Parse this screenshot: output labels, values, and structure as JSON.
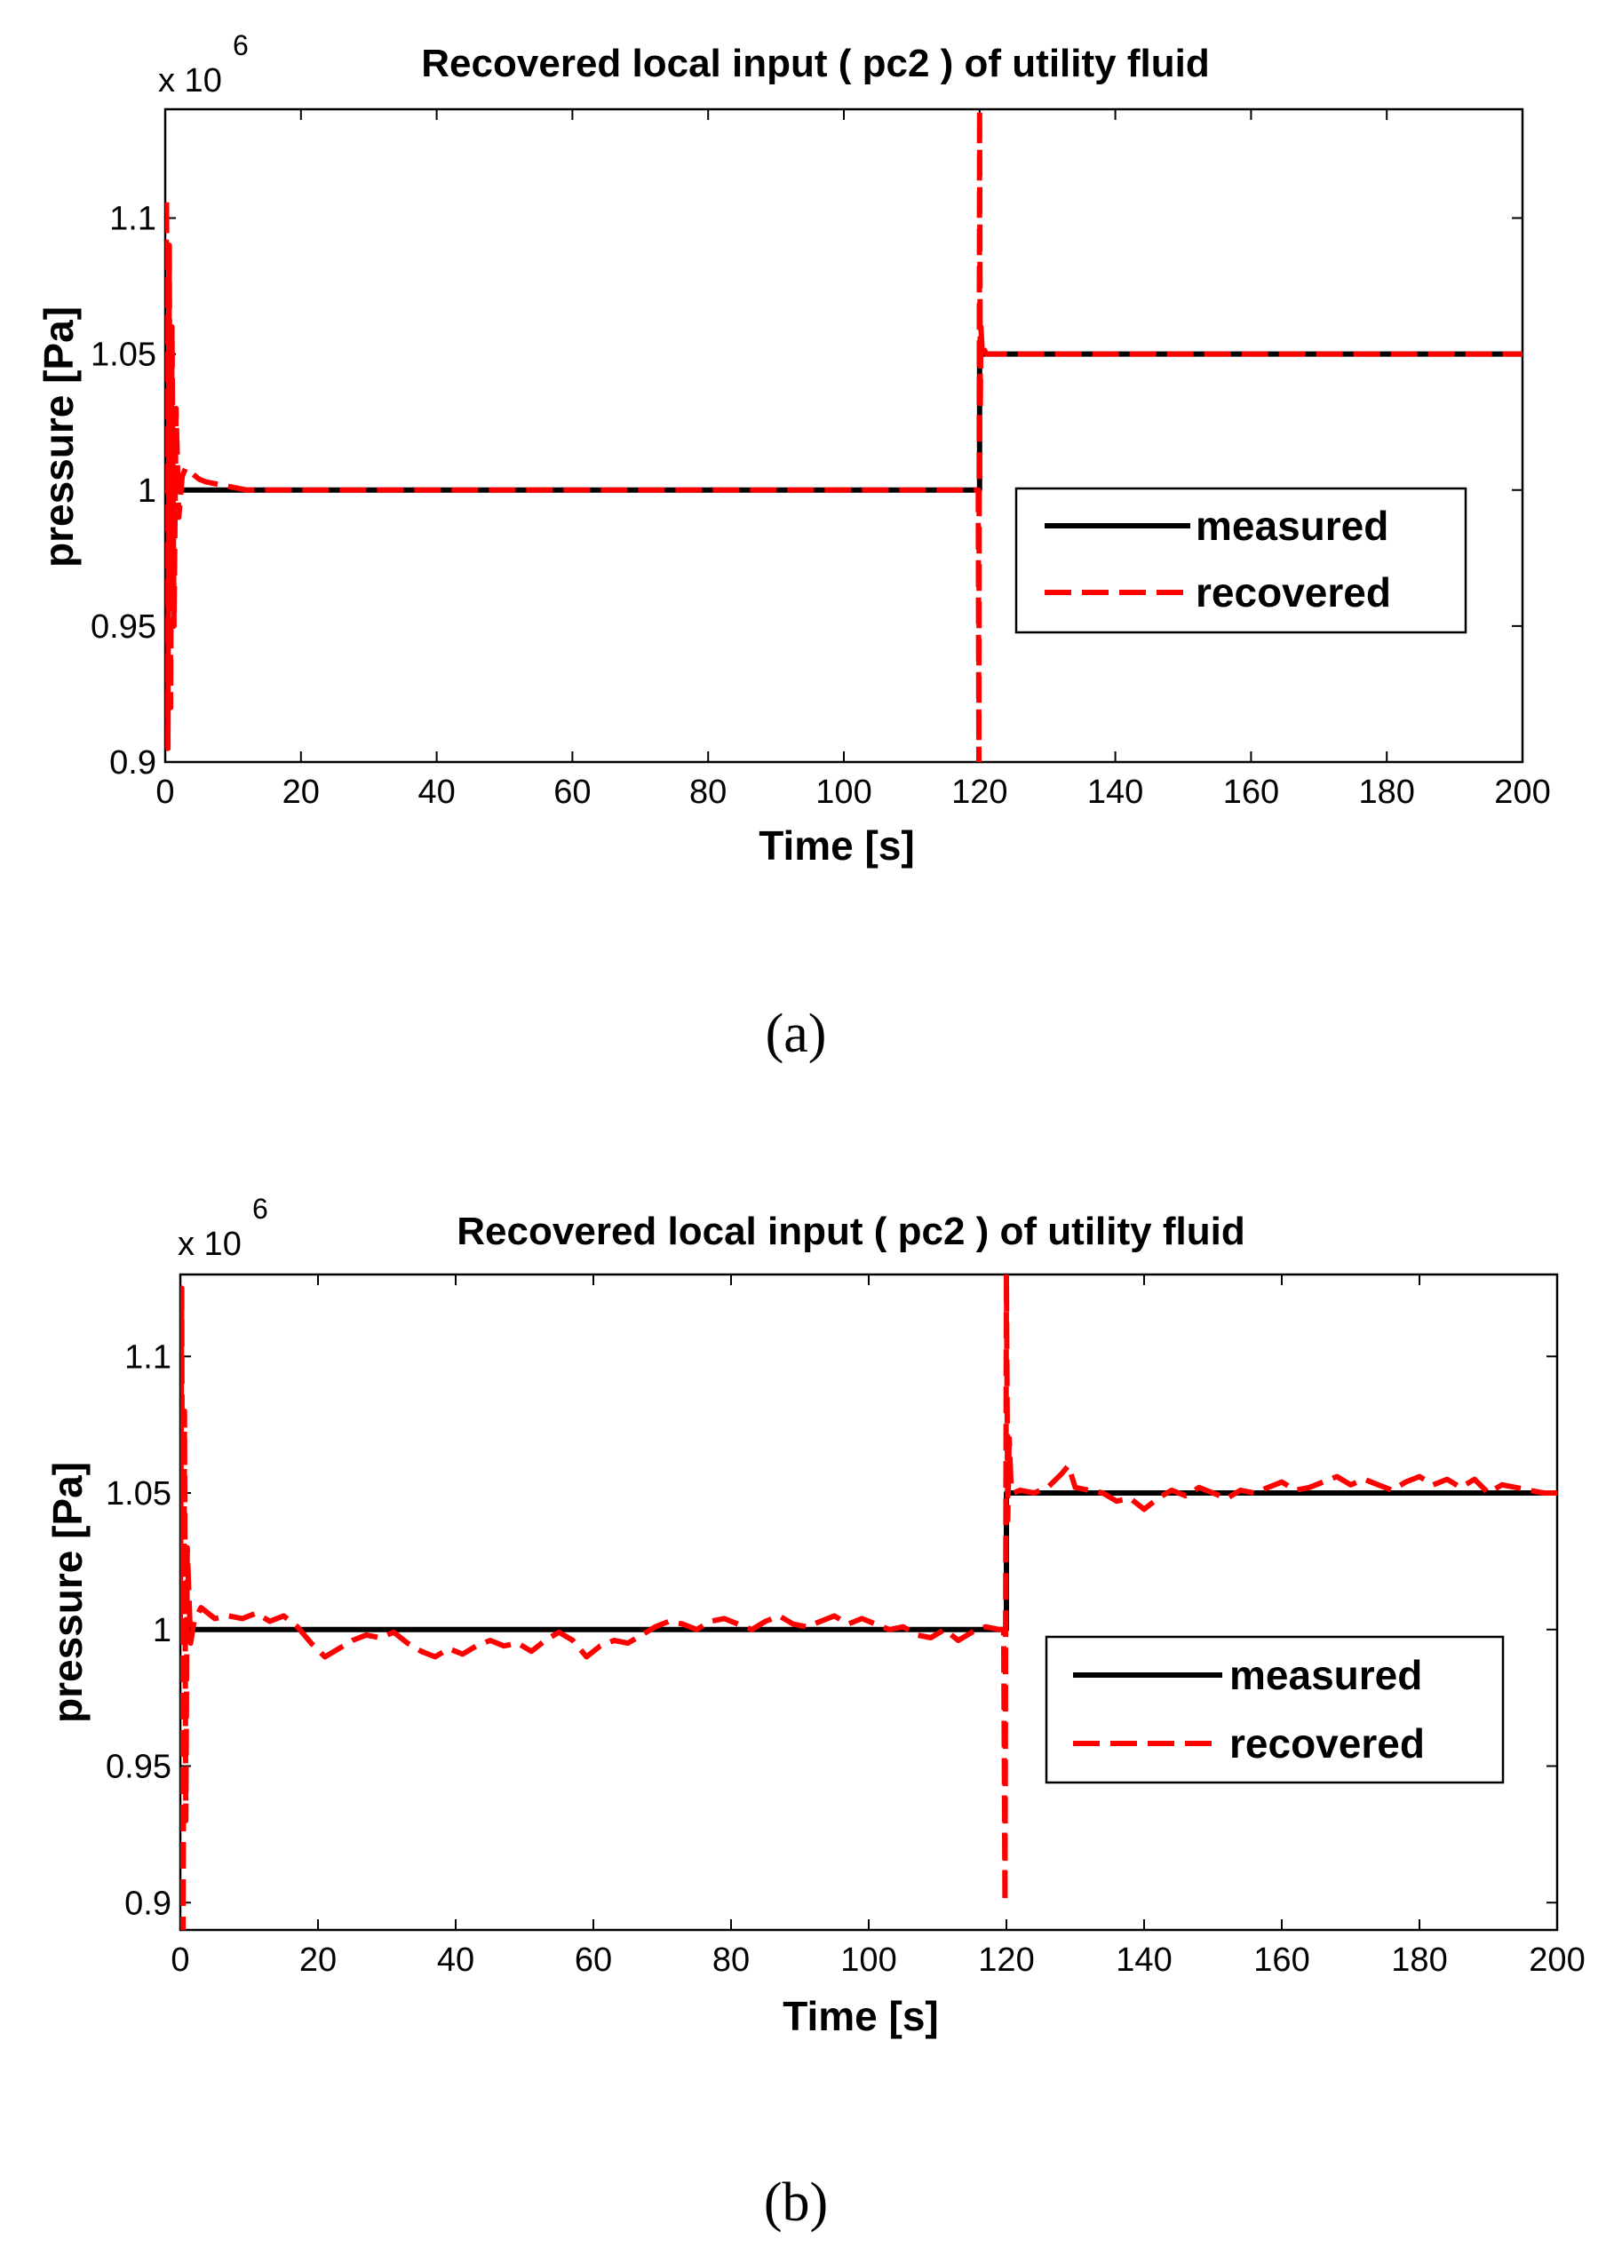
{
  "chart_data": [
    {
      "type": "line",
      "panel_label": "(a)",
      "title": "Recovered local input ( pc2 ) of utility fluid",
      "xlabel": "Time [s]",
      "ylabel": "pressure [Pa]",
      "y_multiplier_base": "x 10",
      "y_multiplier_exp": "6",
      "xlim": [
        0,
        200
      ],
      "ylim": [
        0.9,
        1.14
      ],
      "xticks": [
        0,
        20,
        40,
        60,
        80,
        100,
        120,
        140,
        160,
        180,
        200
      ],
      "xtick_labels": [
        "0",
        "20",
        "40",
        "60",
        "80",
        "100",
        "120",
        "140",
        "160",
        "180",
        "200"
      ],
      "yticks": [
        0.9,
        0.95,
        1.0,
        1.05,
        1.1
      ],
      "ytick_labels": [
        "0.9",
        "0.95",
        "1",
        "1.05",
        "1.1"
      ],
      "grid": false,
      "legend_position": "center-right",
      "series": [
        {
          "name": "measured",
          "color": "#000000",
          "style": "solid",
          "x": [
            0,
            120,
            120,
            200
          ],
          "y": [
            1.0,
            1.0,
            1.05,
            1.05
          ]
        },
        {
          "name": "recovered",
          "color": "#ff0000",
          "style": "dashed",
          "x": [
            0,
            0.2,
            0.4,
            0.6,
            0.8,
            1.0,
            1.3,
            1.6,
            2.0,
            2.5,
            3,
            4,
            5,
            6,
            8,
            10,
            12,
            15,
            20,
            40,
            60,
            80,
            100,
            119.8,
            119.9,
            120.0,
            120.1,
            120.2,
            120.4,
            120.6,
            121,
            130,
            160,
            200
          ],
          "y": [
            1.0,
            1.107,
            0.905,
            1.09,
            0.92,
            1.06,
            0.95,
            1.03,
            0.99,
            1.005,
            1.008,
            1.006,
            1.004,
            1.003,
            1.002,
            1.001,
            1.0,
            1.0,
            1.0,
            1.0,
            1.0,
            1.0,
            1.0,
            1.0,
            0.9,
            1.14,
            1.03,
            1.06,
            1.05,
            1.052,
            1.05,
            1.05,
            1.05,
            1.05
          ]
        }
      ]
    },
    {
      "type": "line",
      "panel_label": "(b)",
      "title": "Recovered local input ( pc2 ) of utility fluid",
      "xlabel": "Time [s]",
      "ylabel": "pressure [Pa]",
      "y_multiplier_base": "x 10",
      "y_multiplier_exp": "6",
      "xlim": [
        0,
        200
      ],
      "ylim": [
        0.89,
        1.13
      ],
      "xticks": [
        0,
        20,
        40,
        60,
        80,
        100,
        120,
        140,
        160,
        180,
        200
      ],
      "xtick_labels": [
        "0",
        "20",
        "40",
        "60",
        "80",
        "100",
        "120",
        "140",
        "160",
        "180",
        "200"
      ],
      "yticks": [
        0.9,
        0.95,
        1.0,
        1.05,
        1.1
      ],
      "ytick_labels": [
        "0.9",
        "0.95",
        "1",
        "1.05",
        "1.1"
      ],
      "grid": false,
      "legend_position": "center-right",
      "series": [
        {
          "name": "measured",
          "color": "#000000",
          "style": "solid",
          "x": [
            0,
            120,
            120,
            200
          ],
          "y": [
            1.0,
            1.0,
            1.05,
            1.05
          ]
        },
        {
          "name": "recovered",
          "color": "#ff0000",
          "style": "dashed",
          "x": [
            0,
            0.2,
            0.4,
            0.6,
            0.8,
            1.0,
            1.5,
            2,
            3,
            5,
            7,
            9,
            11,
            13,
            15,
            17,
            19,
            21,
            23,
            25,
            27,
            29,
            31,
            33,
            35,
            37,
            39,
            41,
            43,
            45,
            47,
            49,
            51,
            53,
            55,
            57,
            59,
            61,
            63,
            65,
            67,
            69,
            71,
            73,
            75,
            77,
            79,
            81,
            83,
            85,
            87,
            89,
            91,
            93,
            95,
            97,
            99,
            101,
            103,
            105,
            107,
            109,
            111,
            113,
            115,
            117,
            119,
            119.6,
            119.8,
            120.0,
            120.2,
            120.4,
            120.7,
            121,
            122,
            124,
            126,
            128,
            129,
            130,
            132,
            134,
            136,
            138,
            140,
            142,
            144,
            146,
            148,
            150,
            152,
            154,
            156,
            158,
            160,
            162,
            164,
            166,
            168,
            170,
            172,
            174,
            176,
            178,
            180,
            182,
            184,
            186,
            188,
            190,
            192,
            194,
            196,
            198,
            200
          ],
          "y": [
            1.0,
            1.125,
            0.89,
            1.08,
            0.93,
            1.03,
            0.995,
            1.003,
            1.008,
            1.004,
            1.005,
            1.004,
            1.006,
            1.003,
            1.005,
            1.001,
            0.995,
            0.99,
            0.993,
            0.996,
            0.998,
            0.997,
            0.999,
            0.995,
            0.992,
            0.99,
            0.993,
            0.991,
            0.994,
            0.996,
            0.994,
            0.995,
            0.992,
            0.996,
            0.999,
            0.996,
            0.99,
            0.994,
            0.996,
            0.995,
            0.998,
            1.001,
            1.003,
            1.002,
            1.0,
            1.003,
            1.004,
            1.002,
            1.0,
            1.003,
            1.005,
            1.002,
            1.001,
            1.003,
            1.005,
            1.002,
            1.004,
            1.002,
            1.0,
            1.001,
            0.998,
            0.997,
            1.0,
            0.996,
            0.999,
            1.001,
            1.0,
            1.0,
            0.9,
            1.13,
            1.04,
            1.07,
            1.052,
            1.05,
            1.051,
            1.05,
            1.052,
            1.057,
            1.06,
            1.052,
            1.051,
            1.05,
            1.047,
            1.048,
            1.044,
            1.048,
            1.051,
            1.049,
            1.052,
            1.05,
            1.048,
            1.051,
            1.05,
            1.052,
            1.054,
            1.051,
            1.052,
            1.054,
            1.056,
            1.053,
            1.055,
            1.053,
            1.051,
            1.054,
            1.056,
            1.053,
            1.055,
            1.052,
            1.055,
            1.05,
            1.053,
            1.052,
            1.051,
            1.05,
            1.05
          ]
        }
      ]
    }
  ]
}
